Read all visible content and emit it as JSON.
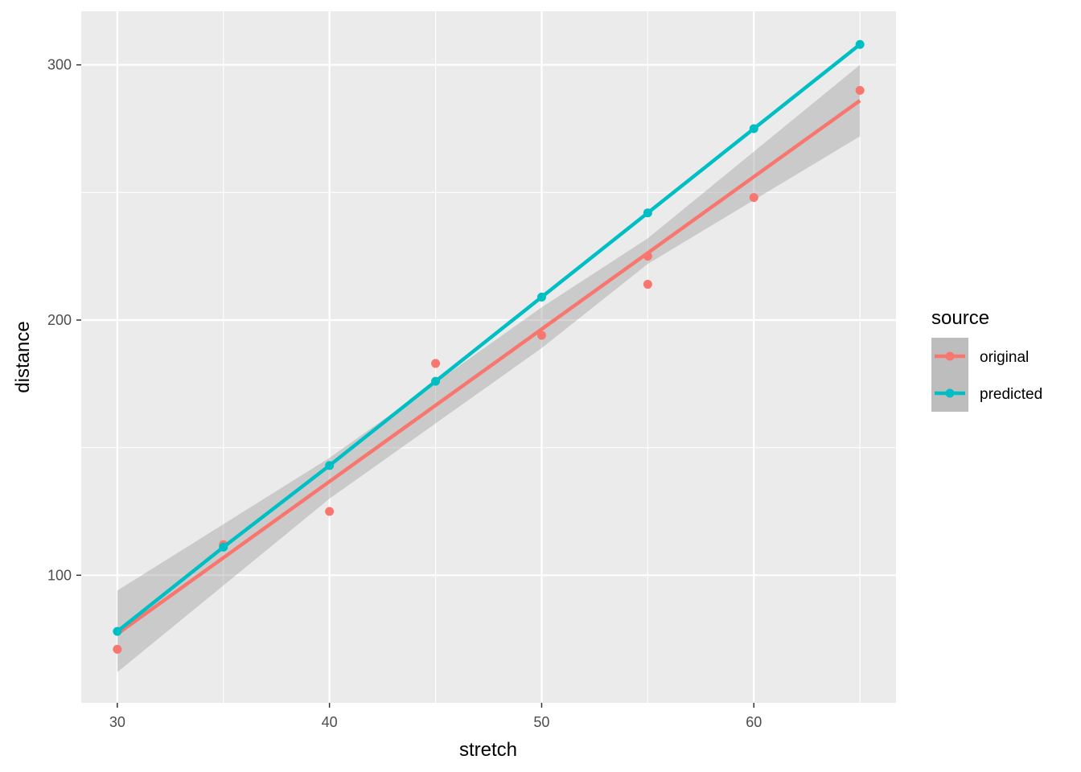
{
  "chart_data": {
    "type": "scatter",
    "xlabel": "stretch",
    "ylabel": "distance",
    "xlim": [
      28.3,
      66.7
    ],
    "ylim": [
      50,
      321
    ],
    "x_ticks": [
      30,
      40,
      50,
      60
    ],
    "x_minor_ticks": [
      35,
      45,
      55,
      65
    ],
    "y_ticks": [
      100,
      200,
      300
    ],
    "y_minor_ticks": [
      150,
      250
    ],
    "grid": true,
    "legend": {
      "title": "source",
      "placement": "right"
    },
    "series": [
      {
        "name": "original",
        "color": "#F8766D",
        "points": [
          [
            30,
            71
          ],
          [
            35,
            112
          ],
          [
            40,
            125
          ],
          [
            45,
            183
          ],
          [
            50,
            194
          ],
          [
            55,
            225
          ],
          [
            55,
            214
          ],
          [
            60,
            248
          ],
          [
            65,
            290
          ]
        ],
        "fit_line": [
          [
            30,
            77
          ],
          [
            65,
            286
          ]
        ],
        "confidence_band": {
          "upper": [
            [
              30,
              94
            ],
            [
              40,
              146
            ],
            [
              50,
              205
            ],
            [
              55,
              232
            ],
            [
              65,
              300
            ]
          ],
          "lower": [
            [
              30,
              62
            ],
            [
              40,
              130
            ],
            [
              50,
              189
            ],
            [
              55,
              222
            ],
            [
              65,
              272
            ]
          ]
        }
      },
      {
        "name": "predicted",
        "color": "#00BFC4",
        "points": [
          [
            30,
            78
          ],
          [
            35,
            111
          ],
          [
            40,
            143
          ],
          [
            45,
            176
          ],
          [
            50,
            209
          ],
          [
            55,
            242
          ],
          [
            60,
            275
          ],
          [
            65,
            308
          ]
        ]
      }
    ]
  }
}
